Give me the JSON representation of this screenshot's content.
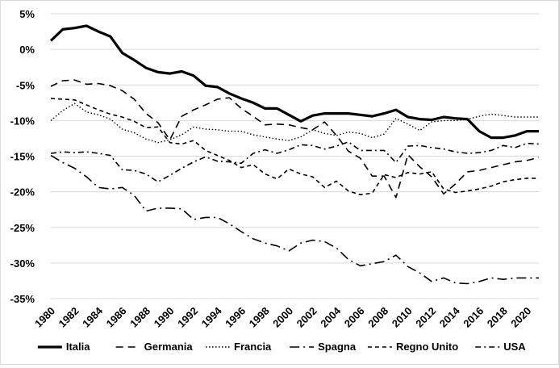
{
  "chart_data": {
    "type": "line",
    "title": "",
    "xlabel": "",
    "ylabel": "",
    "ylim": [
      -35,
      5
    ],
    "xlim": [
      1980,
      2021
    ],
    "y_ticks": [
      5,
      0,
      -5,
      -10,
      -15,
      -20,
      -25,
      -30,
      -35
    ],
    "y_tick_labels": [
      "5%",
      "0%",
      "-5%",
      "-10%",
      "-15%",
      "-20%",
      "-25%",
      "-30%",
      "-35%"
    ],
    "x_ticks": [
      1980,
      1982,
      1984,
      1986,
      1988,
      1990,
      1992,
      1994,
      1996,
      1998,
      2000,
      2002,
      2004,
      2006,
      2008,
      2010,
      2012,
      2014,
      2016,
      2018,
      2020
    ],
    "x_tick_labels": [
      "1980",
      "1982",
      "1984",
      "1986",
      "1988",
      "1990",
      "1992",
      "1994",
      "1996",
      "1998",
      "2000",
      "2002",
      "2004",
      "2006",
      "2008",
      "2010",
      "2012",
      "2014",
      "2016",
      "2018",
      "2020"
    ],
    "grid": "horizontal",
    "legend_position": "bottom",
    "x": [
      1980,
      1981,
      1982,
      1983,
      1984,
      1985,
      1986,
      1987,
      1988,
      1989,
      1990,
      1991,
      1992,
      1993,
      1994,
      1995,
      1996,
      1997,
      1998,
      1999,
      2000,
      2001,
      2002,
      2003,
      2004,
      2005,
      2006,
      2007,
      2008,
      2009,
      2010,
      2011,
      2012,
      2013,
      2014,
      2015,
      2016,
      2017,
      2018,
      2019,
      2020,
      2021
    ],
    "series": [
      {
        "name": "Italia",
        "color": "#000000",
        "dash": "solid-thick",
        "values": [
          1.2,
          2.8,
          3.0,
          3.3,
          2.5,
          1.8,
          -0.5,
          -1.5,
          -2.6,
          -3.2,
          -3.4,
          -3.1,
          -3.7,
          -5.1,
          -5.3,
          -6.2,
          -6.9,
          -7.5,
          -8.3,
          -8.3,
          -9.2,
          -10.1,
          -9.3,
          -9.0,
          -9.0,
          -9.0,
          -9.2,
          -9.4,
          -9.0,
          -8.5,
          -9.5,
          -9.8,
          -9.9,
          -9.5,
          -9.7,
          -9.8,
          -11.5,
          -12.4,
          -12.4,
          -12.1,
          -11.5,
          -11.5
        ]
      },
      {
        "name": "Germania",
        "color": "#000000",
        "dash": "long-dash",
        "values": [
          -5.2,
          -4.4,
          -4.3,
          -4.9,
          -4.8,
          -5.1,
          -5.8,
          -7.0,
          -9.0,
          -10.3,
          -12.7,
          -9.4,
          -8.5,
          -7.8,
          -7.0,
          -6.8,
          -8.3,
          -9.4,
          -10.6,
          -10.5,
          -10.6,
          -11.0,
          -11.3,
          -10.2,
          -12.1,
          -14.3,
          -15.3,
          -17.8,
          -17.8,
          -20.8,
          -14.8,
          -16.5,
          -17.9,
          -20.3,
          -18.9,
          -17.2,
          -17.0,
          -16.6,
          -16.2,
          -15.8,
          -15.6,
          -15.2
        ]
      },
      {
        "name": "Francia",
        "color": "#000000",
        "dash": "dotted",
        "values": [
          -10.0,
          -8.6,
          -7.6,
          -8.8,
          -9.2,
          -9.8,
          -11.2,
          -11.7,
          -12.6,
          -13.1,
          -12.7,
          -12.0,
          -10.9,
          -11.2,
          -11.3,
          -11.5,
          -11.5,
          -12.0,
          -12.3,
          -12.6,
          -12.8,
          -12.3,
          -11.3,
          -11.8,
          -12.1,
          -11.6,
          -11.8,
          -12.4,
          -11.9,
          -9.7,
          -10.5,
          -11.4,
          -10.2,
          -10.0,
          -10.0,
          -9.8,
          -9.4,
          -9.1,
          -9.3,
          -9.5,
          -9.5,
          -9.5
        ]
      },
      {
        "name": "Spagna",
        "color": "#000000",
        "dash": "long-dash-dot",
        "values": [
          -14.9,
          -15.9,
          -16.7,
          -17.9,
          -19.4,
          -19.6,
          -19.4,
          -20.5,
          -22.7,
          -22.3,
          -22.3,
          -22.4,
          -23.9,
          -23.6,
          -23.6,
          -24.5,
          -25.6,
          -26.6,
          -27.2,
          -27.6,
          -28.3,
          -27.2,
          -26.8,
          -27.0,
          -27.9,
          -29.5,
          -30.4,
          -30.1,
          -29.8,
          -28.9,
          -30.5,
          -31.4,
          -32.6,
          -32.1,
          -32.8,
          -32.9,
          -32.6,
          -32.1,
          -32.3,
          -32.1,
          -32.1,
          -32.1
        ]
      },
      {
        "name": "Regno Unito",
        "color": "#000000",
        "dash": "short-dash",
        "values": [
          -6.9,
          -7.0,
          -7.1,
          -7.8,
          -8.5,
          -9.1,
          -9.5,
          -10.1,
          -11.0,
          -10.9,
          -13.1,
          -13.3,
          -12.8,
          -14.2,
          -14.9,
          -15.6,
          -16.6,
          -16.2,
          -17.5,
          -18.2,
          -16.8,
          -17.5,
          -17.9,
          -19.4,
          -18.5,
          -19.9,
          -20.4,
          -20.2,
          -17.6,
          -18.0,
          -17.3,
          -17.5,
          -17.2,
          -19.6,
          -20.1,
          -19.9,
          -19.6,
          -19.2,
          -18.6,
          -18.3,
          -18.1,
          -18.1
        ]
      },
      {
        "name": "USA",
        "color": "#000000",
        "dash": "dash-dot",
        "values": [
          -14.6,
          -14.4,
          -14.5,
          -14.4,
          -14.6,
          -14.9,
          -16.9,
          -17.0,
          -17.5,
          -18.6,
          -17.7,
          -16.7,
          -15.8,
          -15.1,
          -15.7,
          -15.8,
          -16.0,
          -14.6,
          -14.1,
          -14.6,
          -14.1,
          -13.4,
          -13.5,
          -14.0,
          -13.6,
          -13.0,
          -14.2,
          -14.2,
          -14.2,
          -15.9,
          -13.6,
          -13.5,
          -13.8,
          -14.0,
          -14.4,
          -14.6,
          -14.5,
          -14.2,
          -13.5,
          -13.8,
          -13.2,
          -13.3
        ]
      }
    ]
  }
}
